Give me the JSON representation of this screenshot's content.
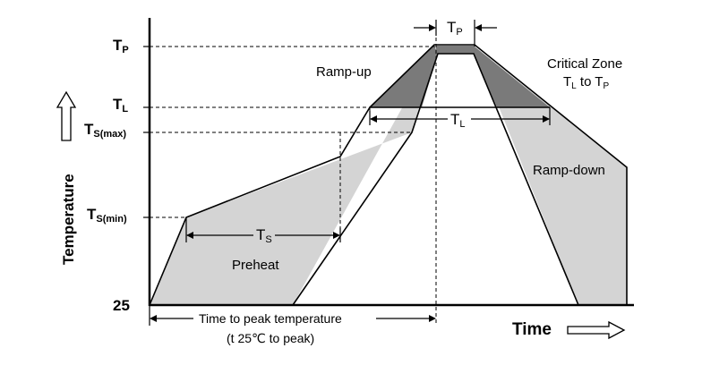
{
  "y_labels": {
    "tp": {
      "main": "T",
      "sub": "P"
    },
    "tl": {
      "main": "T",
      "sub": "L"
    },
    "tsmax": {
      "main": "T",
      "sub": "S(max)"
    },
    "tsmin": {
      "main": "T",
      "sub": "S(min)"
    },
    "ambient": "25"
  },
  "axis_labels": {
    "y": "Temperature",
    "x": "Time"
  },
  "zones": {
    "ramp_up": "Ramp-up",
    "critical_line1": "Critical Zone",
    "critical_line2": {
      "main": "T",
      "sub1": "L",
      "mid": " to T",
      "sub2": "P"
    },
    "ramp_down": "Ramp-down",
    "preheat": "Preheat"
  },
  "intervals": {
    "tp": {
      "main": "T",
      "sub": "P"
    },
    "tl": {
      "main": "T",
      "sub": "L"
    },
    "ts": {
      "main": "T",
      "sub": "S"
    }
  },
  "peak_time": {
    "line1": "Time to peak temperature",
    "line2": "(t 25℃ to peak)"
  },
  "colors": {
    "light_fill": "#d4d4d4",
    "dark_fill": "#7a7a7a",
    "line": "#000000"
  }
}
